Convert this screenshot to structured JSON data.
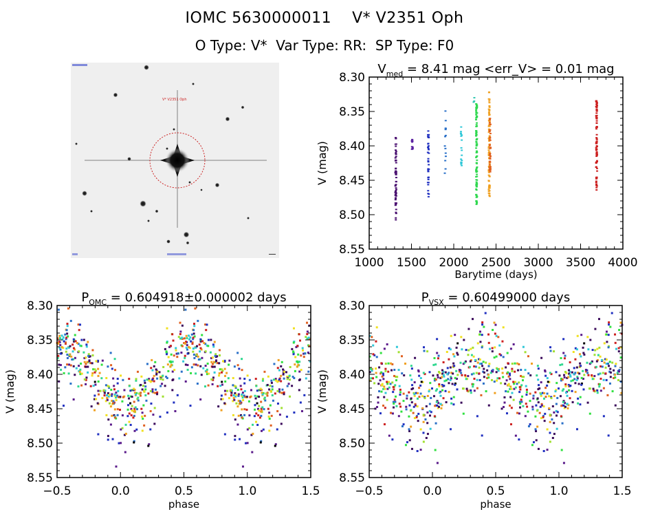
{
  "header": {
    "title": "IOMC 5630000011    V* V2351 Oph",
    "subtitle": "O Type: V*  Var Type: RR:  SP Type: F0"
  },
  "sky_image": {
    "target_label": "V* V2351 Oph",
    "marker_color": "#cc2222",
    "label_color": "#2233cc"
  },
  "colors": {
    "palette": [
      "#3a0a5a",
      "#5a1a8a",
      "#2030c0",
      "#2a70c8",
      "#30c8d8",
      "#30d890",
      "#30e040",
      "#a0e030",
      "#f0e020",
      "#f0a020",
      "#e06020",
      "#cc2020",
      "#000000"
    ]
  },
  "chart_data": [
    {
      "id": "lightcurve",
      "type": "scatter",
      "title_main": "V",
      "title_sub": "med",
      "title_rest": " = 8.41 mag <err_V> = 0.01 mag",
      "xlabel": "Barytime (days)",
      "ylabel": "V (mag)",
      "xlim": [
        1000,
        4000
      ],
      "ylim": [
        8.55,
        8.3
      ],
      "y_inverted": true,
      "xticks": [
        1000,
        1500,
        2000,
        2500,
        3000,
        3500,
        4000
      ],
      "xtick_labels": [
        "1000",
        "1500",
        "2000",
        "2500",
        "3000",
        "3500",
        "4000"
      ],
      "yticks": [
        8.3,
        8.35,
        8.4,
        8.45,
        8.5,
        8.55
      ],
      "ytick_labels": [
        "8.30",
        "8.35",
        "8.40",
        "8.45",
        "8.50",
        "8.55"
      ],
      "groups": [
        {
          "x": 1315,
          "ymin": 8.387,
          "ymax": 8.508,
          "color": "#4a1070",
          "n": 60
        },
        {
          "x": 1510,
          "ymin": 8.383,
          "ymax": 8.415,
          "color": "#5a20a0",
          "n": 12
        },
        {
          "x": 1700,
          "ymin": 8.374,
          "ymax": 8.477,
          "color": "#2030c0",
          "n": 35
        },
        {
          "x": 1900,
          "ymin": 8.347,
          "ymax": 8.442,
          "color": "#2a70c8",
          "n": 14
        },
        {
          "x": 2090,
          "ymin": 8.368,
          "ymax": 8.441,
          "color": "#30c8d8",
          "n": 16
        },
        {
          "x": 2240,
          "ymin": 8.325,
          "ymax": 8.345,
          "color": "#30c8b0",
          "n": 3
        },
        {
          "x": 2270,
          "ymin": 8.337,
          "ymax": 8.486,
          "color": "#30d850",
          "n": 90
        },
        {
          "x": 2420,
          "ymin": 8.321,
          "ymax": 8.475,
          "color": "#f0a020",
          "n": 90
        },
        {
          "x": 2430,
          "ymin": 8.36,
          "ymax": 8.44,
          "color": "#e06020",
          "n": 40
        },
        {
          "x": 3690,
          "ymin": 8.333,
          "ymax": 8.467,
          "color": "#cc2020",
          "n": 80
        }
      ]
    },
    {
      "id": "phase-omc",
      "type": "scatter",
      "title_main": "P",
      "title_sub": "OMC",
      "title_rest": " = 0.604918±0.000002 days",
      "period_days": 0.604918,
      "period_err_days": 2e-06,
      "xlabel": "phase",
      "ylabel": "V (mag)",
      "xlim": [
        -0.5,
        1.5
      ],
      "ylim": [
        8.55,
        8.3
      ],
      "y_inverted": true,
      "xticks": [
        -0.5,
        0.0,
        0.5,
        1.0,
        1.5
      ],
      "xtick_labels": [
        "−0.5",
        "0.0",
        "0.5",
        "1.0",
        "1.5"
      ],
      "yticks": [
        8.3,
        8.35,
        8.4,
        8.45,
        8.5,
        8.55
      ],
      "ytick_labels": [
        "8.30",
        "8.35",
        "8.40",
        "8.45",
        "8.50",
        "8.55"
      ],
      "curve": {
        "max_phase": 0.5,
        "min_phase": 0.05,
        "bright_mag": 8.36,
        "faint_mag": 8.44,
        "scatter_mag": 0.02,
        "n_per_cycle": 420
      }
    },
    {
      "id": "phase-vsx",
      "type": "scatter",
      "title_main": "P",
      "title_sub": "VSX",
      "title_rest": " = 0.60499000 days",
      "period_days": 0.60499,
      "xlabel": "phase",
      "ylabel": "V (mag)",
      "xlim": [
        -0.5,
        1.5
      ],
      "ylim": [
        8.55,
        8.3
      ],
      "y_inverted": true,
      "xticks": [
        -0.5,
        0.0,
        0.5,
        1.0,
        1.5
      ],
      "xtick_labels": [
        "−0.5",
        "0.0",
        "0.5",
        "1.0",
        "1.5"
      ],
      "yticks": [
        8.3,
        8.35,
        8.4,
        8.45,
        8.5,
        8.55
      ],
      "ytick_labels": [
        "8.30",
        "8.35",
        "8.40",
        "8.45",
        "8.50",
        "8.55"
      ],
      "curve": {
        "max_phase": 0.4,
        "min_phase": -0.15,
        "bright_mag": 8.375,
        "faint_mag": 8.435,
        "scatter_mag": 0.028,
        "n_per_cycle": 420
      }
    }
  ]
}
